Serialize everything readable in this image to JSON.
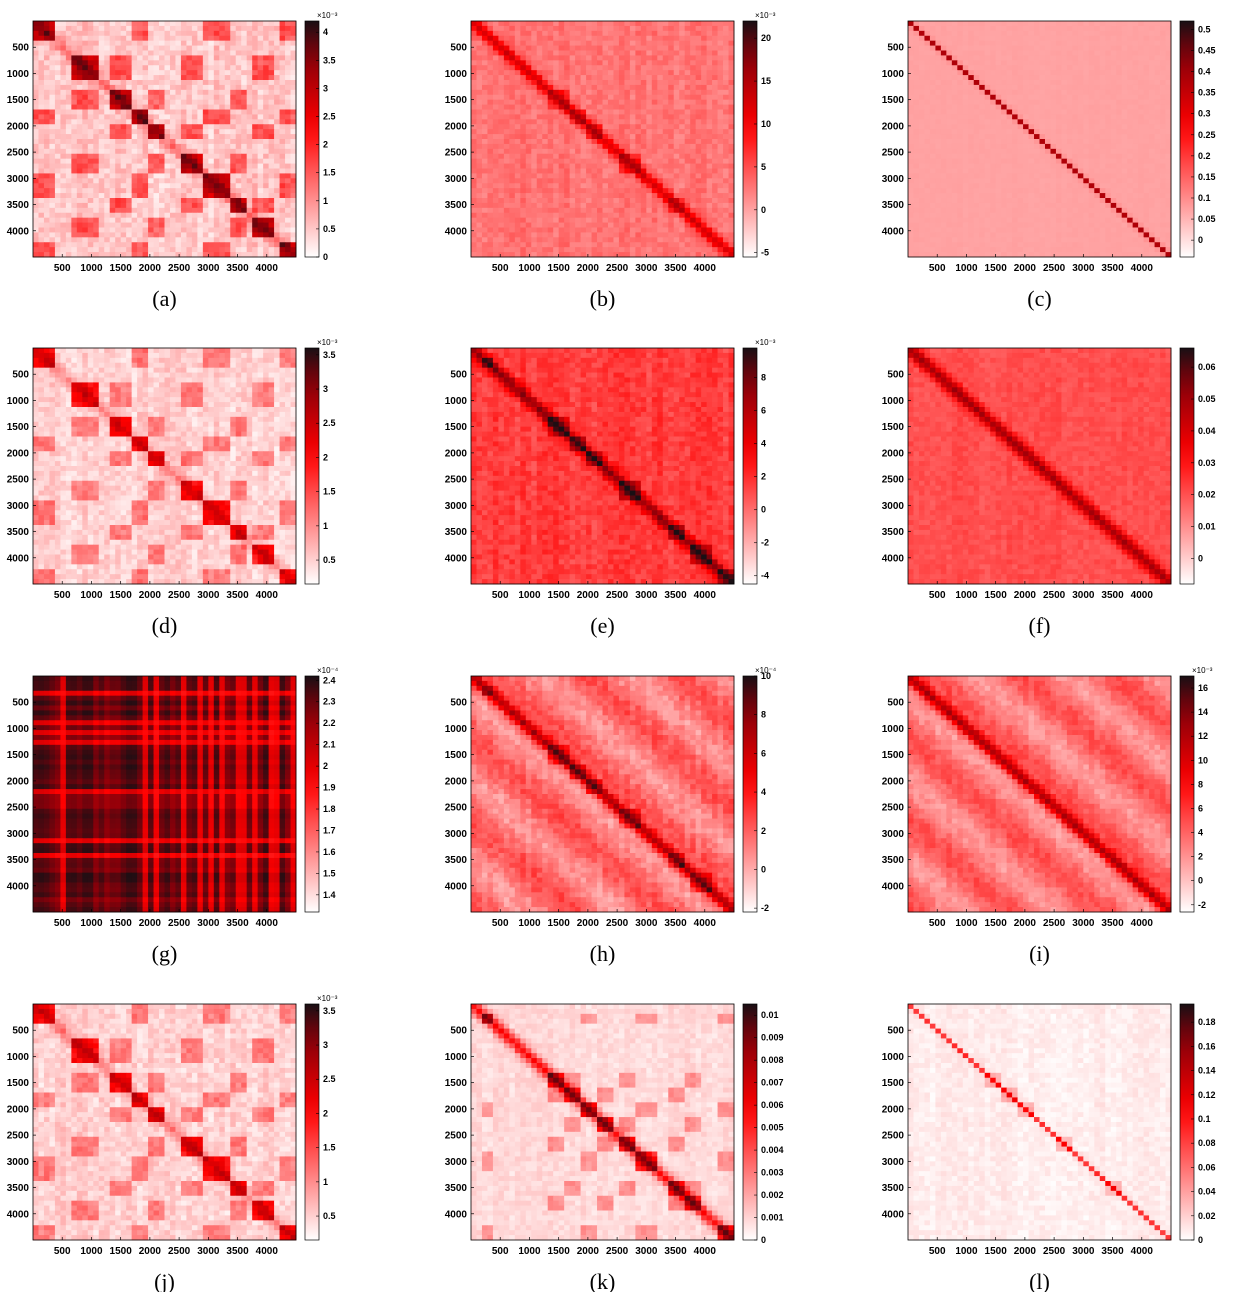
{
  "figure": {
    "type": "heatmap_grid",
    "matrix_size": 4500
  },
  "chart_data": [
    {
      "type": "heatmap",
      "panel_label": "(a)",
      "x_ticks": [
        "500",
        "1000",
        "1500",
        "2000",
        "2500",
        "3000",
        "3500",
        "4000"
      ],
      "y_ticks": [
        "500",
        "1000",
        "1500",
        "2000",
        "2500",
        "3000",
        "3500",
        "4000"
      ],
      "colorbar": {
        "exponent": "×10⁻³",
        "ticks": [
          "0",
          "0.5",
          "1",
          "1.5",
          "2",
          "2.5",
          "3",
          "3.5",
          "4"
        ],
        "range": [
          0,
          4.2
        ]
      },
      "pattern": "blocks",
      "diag_strength": 0.2,
      "block_strength": 0.55,
      "background_level": 0.12,
      "noise": 0.12,
      "blocks": [
        [
          0,
          350
        ],
        [
          700,
          1150
        ],
        [
          1300,
          1700
        ],
        [
          1700,
          2000
        ],
        [
          2000,
          2250
        ],
        [
          2500,
          2950
        ],
        [
          2950,
          3350
        ],
        [
          3350,
          3650
        ],
        [
          3750,
          4100
        ],
        [
          4200,
          4500
        ]
      ]
    },
    {
      "type": "heatmap",
      "panel_label": "(b)",
      "x_ticks": [
        "500",
        "1000",
        "1500",
        "2000",
        "2500",
        "3000",
        "3500",
        "4000"
      ],
      "y_ticks": [
        "500",
        "1000",
        "1500",
        "2000",
        "2500",
        "3000",
        "3500",
        "4000"
      ],
      "colorbar": {
        "exponent": "×10⁻³",
        "ticks": [
          "-5",
          "0",
          "5",
          "10",
          "15",
          "20"
        ],
        "range": [
          -5.5,
          22
        ]
      },
      "pattern": "diagonal",
      "diag_strength": 0.35,
      "block_strength": 0.12,
      "background_level": 0.3,
      "noise": 0.08,
      "blocks": [
        [
          1300,
          1700
        ],
        [
          1700,
          2000
        ],
        [
          2000,
          2250
        ],
        [
          2500,
          2950
        ],
        [
          3350,
          3650
        ]
      ]
    },
    {
      "type": "heatmap",
      "panel_label": "(c)",
      "x_ticks": [
        "500",
        "1000",
        "1500",
        "2000",
        "2500",
        "3000",
        "3500",
        "4000"
      ],
      "y_ticks": [
        "500",
        "1000",
        "1500",
        "2000",
        "2500",
        "3000",
        "3500",
        "4000"
      ],
      "colorbar": {
        "exponent": "",
        "ticks": [
          "0",
          "0.05",
          "0.1",
          "0.15",
          "0.2",
          "0.25",
          "0.3",
          "0.35",
          "0.4",
          "0.45",
          "0.5"
        ],
        "range": [
          -0.04,
          0.52
        ]
      },
      "pattern": "thin_diagonal",
      "diag_strength": 0.55,
      "block_strength": 0.0,
      "background_level": 0.2,
      "noise": 0.01,
      "blocks": []
    },
    {
      "type": "heatmap",
      "panel_label": "(d)",
      "x_ticks": [
        "500",
        "1000",
        "1500",
        "2000",
        "2500",
        "3000",
        "3500",
        "4000"
      ],
      "y_ticks": [
        "500",
        "1000",
        "1500",
        "2000",
        "2500",
        "3000",
        "3500",
        "4000"
      ],
      "colorbar": {
        "exponent": "×10⁻³",
        "ticks": [
          "0.5",
          "1",
          "1.5",
          "2",
          "2.5",
          "3",
          "3.5"
        ],
        "range": [
          0.15,
          3.6
        ]
      },
      "pattern": "blocks",
      "diag_strength": 0.15,
      "block_strength": 0.42,
      "background_level": 0.1,
      "noise": 0.1,
      "blocks": [
        [
          0,
          350
        ],
        [
          700,
          1150
        ],
        [
          1300,
          1700
        ],
        [
          1700,
          2000
        ],
        [
          2000,
          2250
        ],
        [
          2500,
          2950
        ],
        [
          2950,
          3350
        ],
        [
          3350,
          3650
        ],
        [
          3750,
          4100
        ],
        [
          4200,
          4500
        ]
      ]
    },
    {
      "type": "heatmap",
      "panel_label": "(e)",
      "x_ticks": [
        "500",
        "1000",
        "1500",
        "2000",
        "2500",
        "3000",
        "3500",
        "4000"
      ],
      "y_ticks": [
        "500",
        "1000",
        "1500",
        "2000",
        "2500",
        "3000",
        "3500",
        "4000"
      ],
      "colorbar": {
        "exponent": "×10⁻³",
        "ticks": [
          "-4",
          "-2",
          "0",
          "2",
          "4",
          "6",
          "8"
        ],
        "range": [
          -4.5,
          9.8
        ]
      },
      "pattern": "diagonal",
      "diag_strength": 0.4,
      "block_strength": 0.2,
      "background_level": 0.42,
      "noise": 0.1,
      "blocks": [
        [
          150,
          400
        ],
        [
          1300,
          1700
        ],
        [
          1700,
          2000
        ],
        [
          2000,
          2250
        ],
        [
          2500,
          2950
        ],
        [
          3350,
          3650
        ],
        [
          3750,
          4100
        ],
        [
          4200,
          4500
        ]
      ]
    },
    {
      "type": "heatmap",
      "panel_label": "(f)",
      "x_ticks": [
        "500",
        "1000",
        "1500",
        "2000",
        "2500",
        "3000",
        "3500",
        "4000"
      ],
      "y_ticks": [
        "500",
        "1000",
        "1500",
        "2000",
        "2500",
        "3000",
        "3500",
        "4000"
      ],
      "colorbar": {
        "exponent": "",
        "ticks": [
          "0",
          "0.01",
          "0.02",
          "0.03",
          "0.04",
          "0.05",
          "0.06"
        ],
        "range": [
          -0.008,
          0.066
        ]
      },
      "pattern": "diagonal",
      "diag_strength": 0.4,
      "block_strength": 0.0,
      "background_level": 0.38,
      "noise": 0.06,
      "blocks": []
    },
    {
      "type": "heatmap",
      "panel_label": "(g)",
      "x_ticks": [
        "500",
        "1000",
        "1500",
        "2000",
        "2500",
        "3000",
        "3500",
        "4000"
      ],
      "y_ticks": [
        "500",
        "1000",
        "1500",
        "2000",
        "2500",
        "3000",
        "3500",
        "4000"
      ],
      "colorbar": {
        "exponent": "×10⁻⁴",
        "ticks": [
          "1.4",
          "1.5",
          "1.6",
          "1.7",
          "1.8",
          "1.9",
          "2",
          "2.1",
          "2.2",
          "2.3",
          "2.4"
        ],
        "range": [
          1.32,
          2.42
        ]
      },
      "pattern": "stripes",
      "diag_strength": 0.0,
      "block_strength": 0.0,
      "background_level": 0.8,
      "noise": 0.16,
      "blocks": []
    },
    {
      "type": "heatmap",
      "panel_label": "(h)",
      "x_ticks": [
        "500",
        "1000",
        "1500",
        "2000",
        "2500",
        "3000",
        "3500",
        "4000"
      ],
      "y_ticks": [
        "500",
        "1000",
        "1500",
        "2000",
        "2500",
        "3000",
        "3500",
        "4000"
      ],
      "colorbar": {
        "exponent": "×10⁻⁴",
        "ticks": [
          "-2",
          "0",
          "2",
          "4",
          "6",
          "8",
          "10"
        ],
        "range": [
          -2.2,
          10
        ]
      },
      "pattern": "offdiagonal",
      "diag_strength": 0.45,
      "block_strength": 0.15,
      "background_level": 0.3,
      "noise": 0.1,
      "blocks": [
        [
          150,
          400
        ],
        [
          1300,
          1700
        ],
        [
          1700,
          2000
        ],
        [
          2000,
          2250
        ],
        [
          2500,
          2950
        ],
        [
          3350,
          3650
        ],
        [
          3750,
          4100
        ]
      ]
    },
    {
      "type": "heatmap",
      "panel_label": "(i)",
      "x_ticks": [
        "500",
        "1000",
        "1500",
        "2000",
        "2500",
        "3000",
        "3500",
        "4000"
      ],
      "y_ticks": [
        "500",
        "1000",
        "1500",
        "2000",
        "2500",
        "3000",
        "3500",
        "4000"
      ],
      "colorbar": {
        "exponent": "×10⁻³",
        "ticks": [
          "-2",
          "0",
          "2",
          "4",
          "6",
          "8",
          "10",
          "12",
          "14",
          "16"
        ],
        "range": [
          -2.6,
          17
        ]
      },
      "pattern": "offdiagonal",
      "diag_strength": 0.45,
      "block_strength": 0.06,
      "background_level": 0.3,
      "noise": 0.08,
      "blocks": []
    },
    {
      "type": "heatmap",
      "panel_label": "(j)",
      "x_ticks": [
        "500",
        "1000",
        "1500",
        "2000",
        "2500",
        "3000",
        "3500",
        "4000"
      ],
      "y_ticks": [
        "500",
        "1000",
        "1500",
        "2000",
        "2500",
        "3000",
        "3500",
        "4000"
      ],
      "colorbar": {
        "exponent": "×10⁻³",
        "ticks": [
          "0.5",
          "1",
          "1.5",
          "2",
          "2.5",
          "3",
          "3.5"
        ],
        "range": [
          0.15,
          3.6
        ]
      },
      "pattern": "blocks",
      "diag_strength": 0.18,
      "block_strength": 0.42,
      "background_level": 0.1,
      "noise": 0.1,
      "blocks": [
        [
          0,
          350
        ],
        [
          700,
          1150
        ],
        [
          1300,
          1700
        ],
        [
          1700,
          2000
        ],
        [
          2000,
          2250
        ],
        [
          2500,
          2950
        ],
        [
          2950,
          3350
        ],
        [
          3350,
          3650
        ],
        [
          3750,
          4100
        ],
        [
          4200,
          4500
        ]
      ]
    },
    {
      "type": "heatmap",
      "panel_label": "(k)",
      "x_ticks": [
        "500",
        "1000",
        "1500",
        "2000",
        "2500",
        "3000",
        "3500",
        "4000"
      ],
      "y_ticks": [
        "500",
        "1000",
        "1500",
        "2000",
        "2500",
        "3000",
        "3500",
        "4000"
      ],
      "colorbar": {
        "exponent": "",
        "ticks": [
          "0",
          "0.001",
          "0.002",
          "0.003",
          "0.004",
          "0.005",
          "0.006",
          "0.007",
          "0.008",
          "0.009",
          "0.01"
        ],
        "range": [
          0,
          0.0105
        ]
      },
      "pattern": "blocks",
      "diag_strength": 0.45,
      "block_strength": 0.35,
      "background_level": 0.08,
      "noise": 0.06,
      "blocks": [
        [
          150,
          400
        ],
        [
          1300,
          1600
        ],
        [
          1600,
          1900
        ],
        [
          1900,
          2150
        ],
        [
          2150,
          2450
        ],
        [
          2500,
          2800
        ],
        [
          2800,
          3150
        ],
        [
          3350,
          3650
        ],
        [
          3650,
          3950
        ],
        [
          4200,
          4500
        ]
      ]
    },
    {
      "type": "heatmap",
      "panel_label": "(l)",
      "x_ticks": [
        "500",
        "1000",
        "1500",
        "2000",
        "2500",
        "3000",
        "3500",
        "4000"
      ],
      "y_ticks": [
        "500",
        "1000",
        "1500",
        "2000",
        "2500",
        "3000",
        "3500",
        "4000"
      ],
      "colorbar": {
        "exponent": "",
        "ticks": [
          "0",
          "0.02",
          "0.04",
          "0.06",
          "0.08",
          "0.1",
          "0.12",
          "0.14",
          "0.16",
          "0.18"
        ],
        "range": [
          0,
          0.195
        ]
      },
      "pattern": "thin_diagonal",
      "diag_strength": 0.4,
      "block_strength": 0.12,
      "background_level": 0.04,
      "noise": 0.05,
      "blocks": [
        [
          1300,
          1600
        ],
        [
          1600,
          1900
        ],
        [
          1900,
          2150
        ],
        [
          2500,
          2800
        ],
        [
          3350,
          3650
        ]
      ]
    }
  ]
}
